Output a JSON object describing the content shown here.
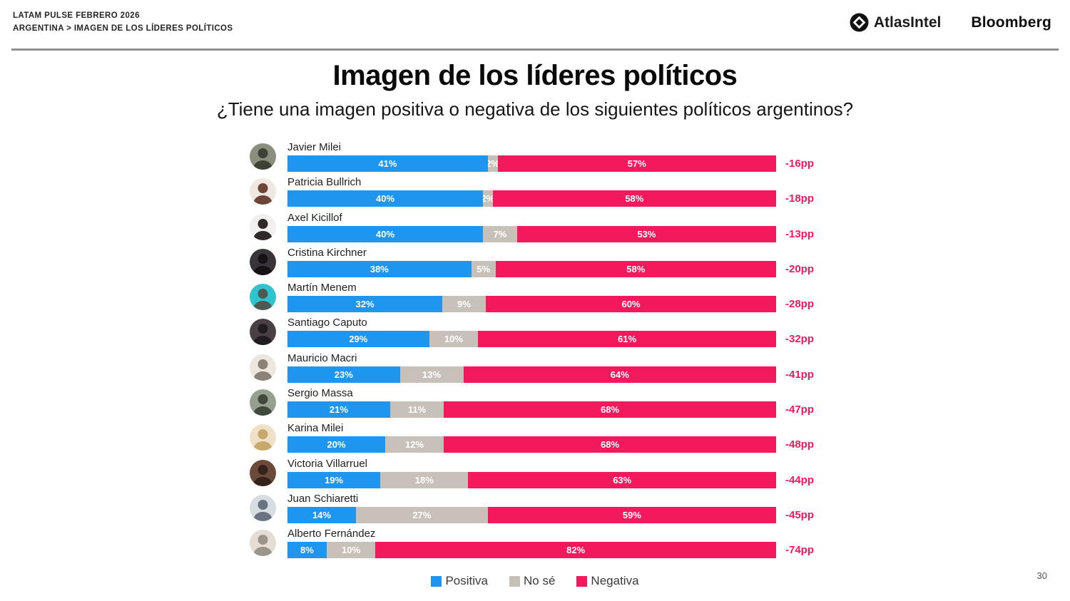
{
  "header": {
    "line1": "LATAM PULSE FEBRERO 2026",
    "line2": "ARGENTINA > IMAGEN DE LOS LÍDERES POLÍTICOS",
    "brand_atlas": "AtlasIntel",
    "brand_bloomberg": "Bloomberg"
  },
  "title": "Imagen de los líderes políticos",
  "subtitle": "¿Tiene una imagen positiva o negativa de los siguientes políticos argentinos?",
  "page_number": "30",
  "colors": {
    "positive": "#1E96F0",
    "unsure": "#C8C1BA",
    "negative": "#F2195D",
    "diff_text": "#F2195D"
  },
  "legend": [
    {
      "label": "Positiva",
      "key": "positive"
    },
    {
      "label": "No sé",
      "key": "unsure"
    },
    {
      "label": "Negativa",
      "key": "negative"
    }
  ],
  "chart_data": {
    "type": "bar",
    "orientation": "horizontal",
    "stacked": true,
    "title": "Imagen de los líderes políticos",
    "xlabel": "",
    "ylabel": "",
    "xlim": [
      0,
      100
    ],
    "value_suffix": "%",
    "legend_position": "bottom",
    "categories": [
      "Javier Milei",
      "Patricia Bullrich",
      "Axel Kicillof",
      "Cristina Kirchner",
      "Martín Menem",
      "Santiago Caputo",
      "Mauricio Macri",
      "Sergio Massa",
      "Karina Milei",
      "Victoria Villarruel",
      "Juan Schiaretti",
      "Alberto Fernández"
    ],
    "series": [
      {
        "name": "Positiva",
        "color": "#1E96F0",
        "values": [
          41,
          40,
          40,
          38,
          32,
          29,
          23,
          21,
          20,
          19,
          14,
          8
        ]
      },
      {
        "name": "No sé",
        "color": "#C8C1BA",
        "values": [
          2,
          2,
          7,
          5,
          9,
          10,
          13,
          11,
          12,
          18,
          27,
          10
        ]
      },
      {
        "name": "Negativa",
        "color": "#F2195D",
        "values": [
          57,
          58,
          53,
          58,
          60,
          61,
          64,
          68,
          68,
          63,
          59,
          82
        ]
      }
    ],
    "net_labels": [
      "-16pp",
      "-18pp",
      "-13pp",
      "-20pp",
      "-28pp",
      "-32pp",
      "-41pp",
      "-47pp",
      "-48pp",
      "-44pp",
      "-45pp",
      "-74pp"
    ]
  },
  "avatars": [
    {
      "bg": "#8a8f7d",
      "fg": "#3c4236"
    },
    {
      "bg": "#efe7e1",
      "fg": "#6e4639"
    },
    {
      "bg": "#f2f0ee",
      "fg": "#2f2a28"
    },
    {
      "bg": "#3a3438",
      "fg": "#171314"
    },
    {
      "bg": "#2ec4cf",
      "fg": "#4c5a52"
    },
    {
      "bg": "#4a3f45",
      "fg": "#211c20"
    },
    {
      "bg": "#ece6df",
      "fg": "#8c8177"
    },
    {
      "bg": "#97a08f",
      "fg": "#41483c"
    },
    {
      "bg": "#efe0c8",
      "fg": "#c7a96b"
    },
    {
      "bg": "#6b4a3c",
      "fg": "#35221b"
    },
    {
      "bg": "#d7dee3",
      "fg": "#6a7480"
    },
    {
      "bg": "#e3ddd4",
      "fg": "#9a948a"
    }
  ]
}
